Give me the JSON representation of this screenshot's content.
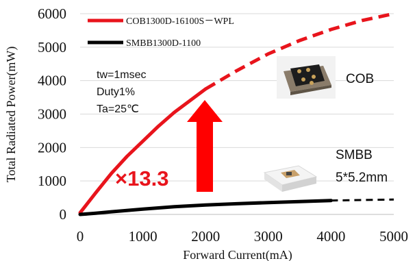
{
  "chart_data": {
    "type": "line",
    "xlabel": "Forward Current(mA)",
    "ylabel": "Total Radiated Power(mW)",
    "xlim": [
      0,
      5000
    ],
    "ylim": [
      0,
      6000
    ],
    "xticks": [
      "0",
      "1000",
      "2000",
      "3000",
      "4000",
      "5000"
    ],
    "yticks": [
      "0",
      "1000",
      "2000",
      "3000",
      "4000",
      "5000",
      "6000"
    ],
    "grid": "horizontal",
    "legend_position": "top-left",
    "series": [
      {
        "name": "COB1300D-16100S－WPL",
        "color": "#e8141c",
        "x": [
          0,
          250,
          500,
          750,
          1000,
          1250,
          1500,
          1750,
          2000,
          2500,
          3000,
          3500,
          4000,
          4500,
          5000
        ],
        "y": [
          50,
          650,
          1230,
          1740,
          2190,
          2640,
          3050,
          3400,
          3750,
          4300,
          4800,
          5200,
          5530,
          5800,
          6000
        ],
        "solid_until": 2000
      },
      {
        "name": "SMBB1300D-1100",
        "color": "#000000",
        "x": [
          0,
          250,
          500,
          1000,
          1500,
          2000,
          2500,
          3000,
          3500,
          4000,
          4500,
          5000
        ],
        "y": [
          0,
          35,
          80,
          160,
          230,
          280,
          320,
          355,
          385,
          415,
          430,
          445
        ],
        "solid_until": 4000
      }
    ]
  },
  "conditions": [
    "tw=1msec",
    "Duty1%",
    "Ta=25℃"
  ],
  "labels": {
    "cob": "COB",
    "smbb_line1": "SMBB",
    "smbb_line2": "5*5.2mm",
    "ratio": "×13.3"
  },
  "colors": {
    "arrow": "#ff0000",
    "ratio_text": "#e8141c"
  }
}
